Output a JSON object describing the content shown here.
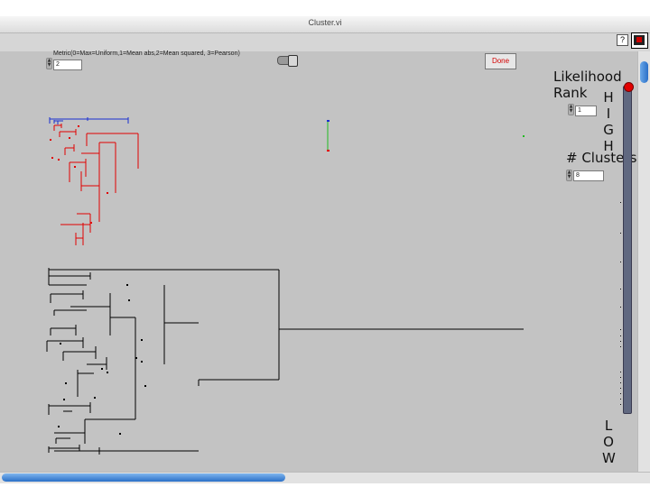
{
  "window": {
    "title": "Cluster.vi"
  },
  "toolbar": {
    "help_label": "?",
    "vi_icon": "vi-icon"
  },
  "metric": {
    "label": "Metric(0=Max=Uniform,1=Mean abs,2=Mean squared, 3=Pearson)",
    "value": "2"
  },
  "controls": {
    "done_label": "Done",
    "likelihood_label_1": "Likelihood",
    "likelihood_label_2": "Rank",
    "likelihood_value": "1",
    "clusters_label": "# Clusters",
    "clusters_value": "8"
  },
  "slider": {
    "high_letters": [
      "H",
      "I",
      "G",
      "H"
    ],
    "low_letters": [
      "L",
      "O",
      "W"
    ],
    "position": 0.0
  },
  "colors": {
    "blue_cluster": "#1a2fd0",
    "red_cluster": "#e00000",
    "green_marker": "#22bb22",
    "black_tree": "#000000",
    "panel_bg": "#c3c3c3"
  }
}
